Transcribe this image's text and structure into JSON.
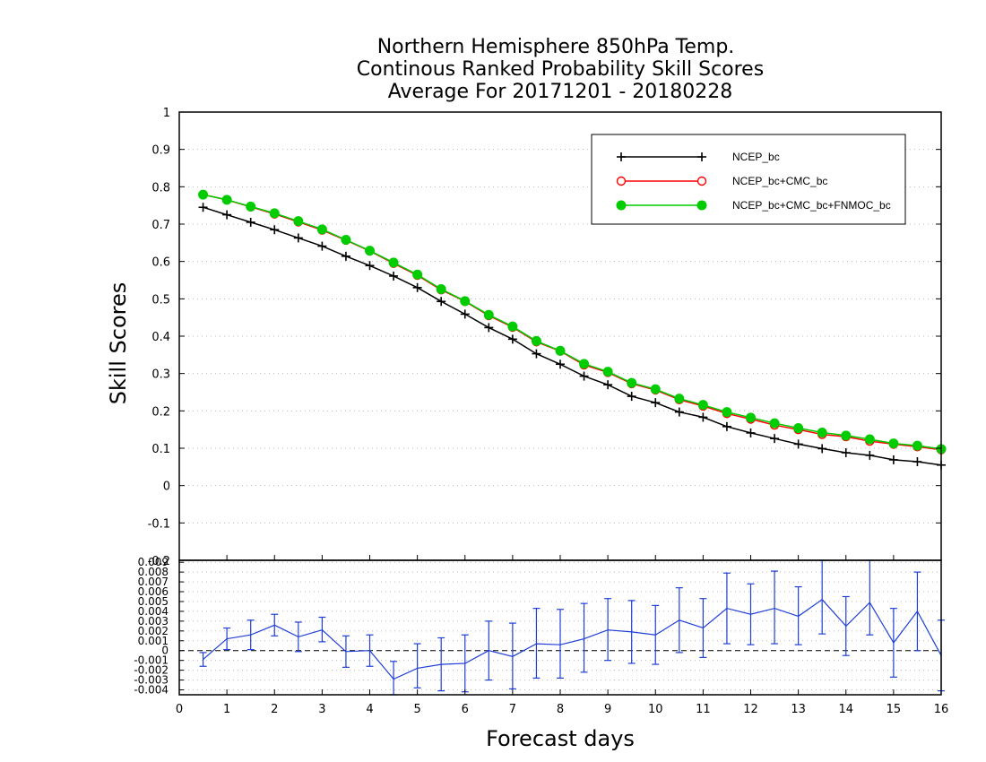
{
  "chart_data": [
    {
      "type": "line",
      "title": [
        "Northern Hemisphere 850hPa Temp.",
        "Continous Ranked Probability Skill Scores",
        "Average For 20171201 - 20180228"
      ],
      "xlabel": "Forecast days",
      "ylabel": "Skill Scores",
      "xlim": [
        0,
        16
      ],
      "ylim": [
        -0.2,
        1.0
      ],
      "y_ticks": [
        "-0.1",
        "0",
        "0.1",
        "0.2",
        "0.3",
        "0.4",
        "0.5",
        "0.6",
        "0.7",
        "0.8",
        "0.9",
        "1"
      ],
      "grid": true,
      "legend_position": "top-right",
      "x": [
        0.5,
        1,
        1.5,
        2,
        2.5,
        3,
        3.5,
        4,
        4.5,
        5,
        5.5,
        6,
        6.5,
        7,
        7.5,
        8,
        8.5,
        9,
        9.5,
        10,
        10.5,
        11,
        11.5,
        12,
        12.5,
        13,
        13.5,
        14,
        14.5,
        15,
        15.5,
        16
      ],
      "series": [
        {
          "name": "NCEP_bc",
          "color": "#000000",
          "marker": "plus",
          "values": [
            0.745,
            0.725,
            0.705,
            0.685,
            0.663,
            0.641,
            0.614,
            0.589,
            0.561,
            0.53,
            0.493,
            0.459,
            0.423,
            0.392,
            0.353,
            0.325,
            0.293,
            0.27,
            0.239,
            0.222,
            0.197,
            0.183,
            0.158,
            0.141,
            0.126,
            0.111,
            0.099,
            0.088,
            0.081,
            0.069,
            0.064,
            0.055
          ]
        },
        {
          "name": "NCEP_bc+CMC_bc",
          "color": "#ff0000",
          "marker": "open-circle",
          "values": [
            0.779,
            0.765,
            0.746,
            0.727,
            0.706,
            0.684,
            0.657,
            0.628,
            0.595,
            0.563,
            0.524,
            0.493,
            0.455,
            0.424,
            0.385,
            0.36,
            0.323,
            0.303,
            0.273,
            0.256,
            0.23,
            0.213,
            0.193,
            0.178,
            0.162,
            0.15,
            0.137,
            0.131,
            0.119,
            0.111,
            0.104,
            0.096
          ]
        },
        {
          "name": "NCEP_bc+CMC_bc+FNMOC_bc",
          "color": "#00cc00",
          "marker": "filled-circle",
          "values": [
            0.779,
            0.765,
            0.747,
            0.729,
            0.708,
            0.686,
            0.658,
            0.629,
            0.597,
            0.565,
            0.526,
            0.494,
            0.457,
            0.426,
            0.387,
            0.361,
            0.326,
            0.305,
            0.275,
            0.258,
            0.233,
            0.216,
            0.197,
            0.182,
            0.167,
            0.154,
            0.142,
            0.134,
            0.124,
            0.113,
            0.107,
            0.098
          ]
        }
      ]
    },
    {
      "type": "line",
      "xlabel": "Forecast days",
      "x_ticks": [
        "0",
        "1",
        "2",
        "3",
        "4",
        "5",
        "6",
        "7",
        "8",
        "9",
        "10",
        "11",
        "12",
        "13",
        "14",
        "15",
        "16"
      ],
      "xlim": [
        0,
        16
      ],
      "ylim": [
        -0.0045,
        0.0092
      ],
      "y_ticks": [
        "-0.004",
        "-0.003",
        "-0.002",
        "-0.001",
        "0",
        "0.001",
        "0.002",
        "0.003",
        "0.004",
        "0.005",
        "0.006",
        "0.007",
        "0.008",
        "0.009"
      ],
      "top_label": "-0.2",
      "grid": true,
      "series": [
        {
          "color": "#1f3fd6",
          "marker": "errorbar",
          "x": [
            0.5,
            1,
            1.5,
            2,
            2.5,
            3,
            3.5,
            4,
            4.5,
            5,
            5.5,
            6,
            6.5,
            7,
            7.5,
            8,
            8.5,
            9,
            9.5,
            10,
            10.5,
            11,
            11.5,
            12,
            12.5,
            13,
            13.5,
            14,
            14.5,
            15,
            15.5,
            16
          ],
          "values": [
            -0.0009,
            0.0012,
            0.0016,
            0.0026,
            0.0014,
            0.0021,
            -0.0001,
            0.0,
            -0.0029,
            -0.0018,
            -0.0014,
            -0.0013,
            0.0,
            -0.0006,
            0.0007,
            0.0006,
            0.0012,
            0.0021,
            0.0019,
            0.0016,
            0.0031,
            0.0023,
            0.0043,
            0.0037,
            0.0043,
            0.0035,
            0.0052,
            0.0025,
            0.0049,
            0.0008,
            0.004,
            -0.0005
          ],
          "error_low": [
            -0.0016,
            0.0001,
            0.0001,
            0.0015,
            -0.0001,
            0.0009,
            -0.0017,
            -0.0016,
            -0.0046,
            -0.0038,
            -0.0041,
            -0.0042,
            -0.003,
            -0.0039,
            -0.0028,
            -0.0028,
            -0.0022,
            -0.001,
            -0.0013,
            -0.0014,
            -0.0002,
            -0.0007,
            0.0007,
            0.0006,
            0.0007,
            0.0006,
            0.0017,
            -0.0005,
            0.0016,
            -0.0027,
            0.0,
            -0.0041
          ],
          "error_high": [
            -0.0002,
            0.0023,
            0.0031,
            0.0037,
            0.0029,
            0.0034,
            0.0015,
            0.0016,
            -0.0011,
            0.0007,
            0.0013,
            0.0016,
            0.003,
            0.0028,
            0.0043,
            0.0042,
            0.0048,
            0.0053,
            0.0051,
            0.0046,
            0.0064,
            0.0053,
            0.0079,
            0.0068,
            0.0081,
            0.0065,
            0.0092,
            0.0055,
            0.0092,
            0.0043,
            0.008,
            0.0031
          ]
        }
      ]
    }
  ]
}
